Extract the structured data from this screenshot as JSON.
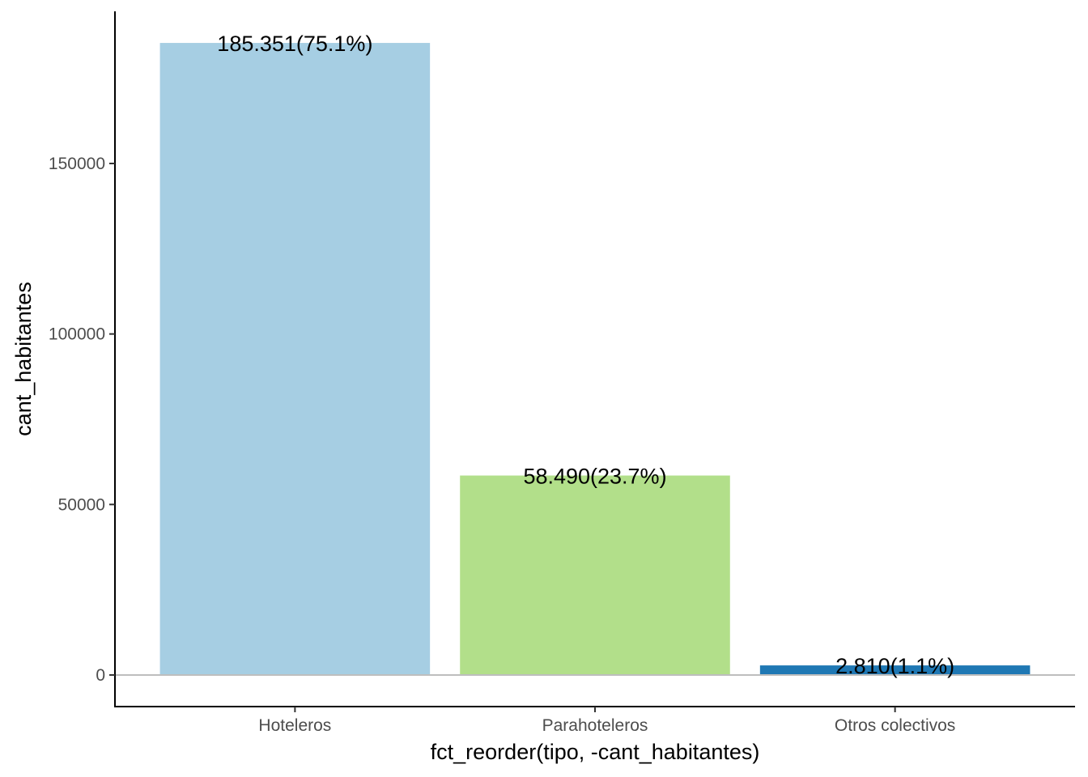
{
  "chart_data": {
    "type": "bar",
    "categories": [
      "Hoteleros",
      "Parahoteleros",
      "Otros colectivos"
    ],
    "values": [
      185351,
      58490,
      2810
    ],
    "labels": [
      "185.351(75.1%)",
      "58.490(23.7%)",
      "2.810(1.1%)"
    ],
    "colors": [
      "#A6CEE3",
      "#B2DF8A",
      "#1F78B4"
    ],
    "xlabel": "fct_reorder(tipo, -cant_habitantes)",
    "ylabel": "cant_habitantes",
    "ylim": [
      -9267.55,
      194618.55
    ],
    "yticks": [
      0,
      50000,
      100000,
      150000
    ],
    "ytick_labels": [
      "0",
      "50000",
      "100000",
      "150000"
    ],
    "grid": false,
    "reference_line_y": 0,
    "reference_line_color": "#BEBEBE"
  }
}
